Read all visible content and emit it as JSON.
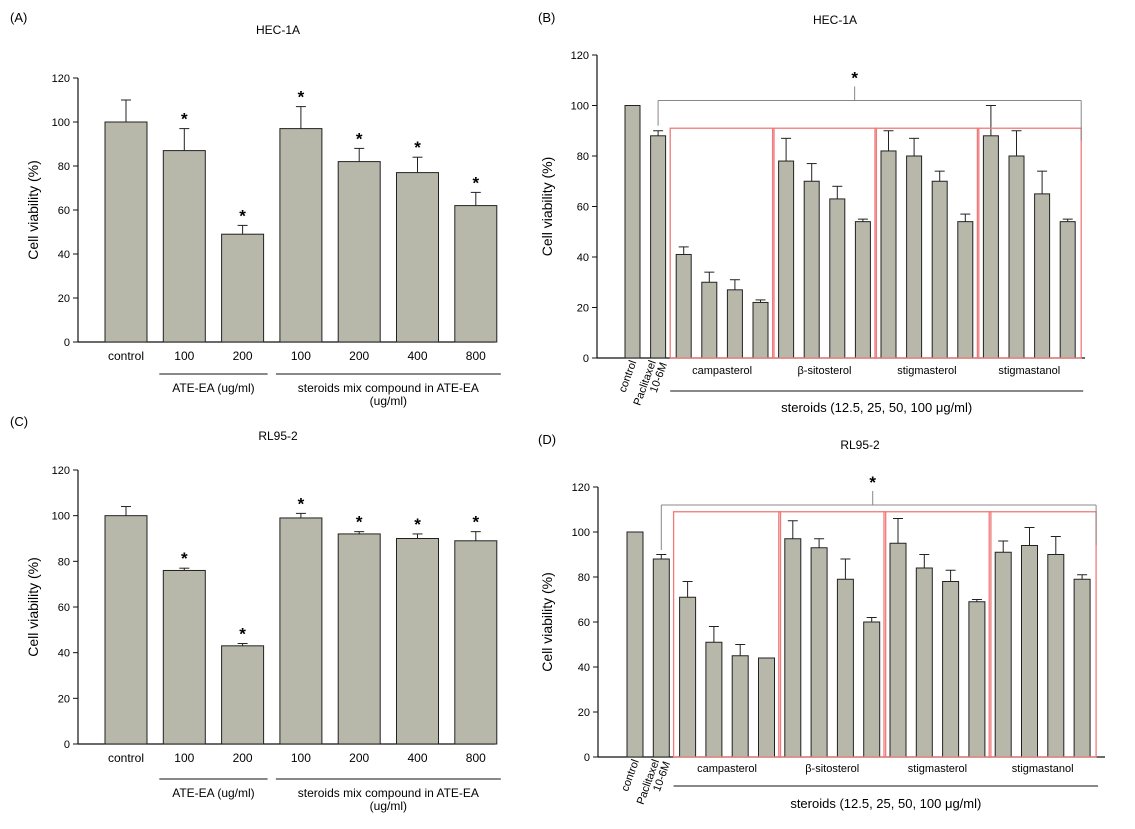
{
  "style": {
    "bar_fill": "#b8b8aa",
    "bar_stroke": "#222222",
    "group_box": "#f07a7a",
    "axis": "#111111",
    "bracket": "#888888"
  },
  "chart_data": [
    {
      "panel_label": "(A)",
      "type": "bar",
      "title": "HEC-1A",
      "xlabel": "",
      "ylabel": "Cell viability (%)",
      "ylim": [
        0,
        120
      ],
      "yticks": [
        0,
        20,
        40,
        60,
        80,
        100,
        120
      ],
      "categories": [
        "control",
        "100",
        "200",
        "100",
        "200",
        "400",
        "800"
      ],
      "values": [
        100,
        87,
        49,
        97,
        82,
        77,
        62
      ],
      "errors": [
        10,
        10,
        4,
        10,
        6,
        7,
        6
      ],
      "significant": [
        false,
        true,
        true,
        true,
        true,
        true,
        true
      ],
      "star_label": "*",
      "groups": [
        {
          "label": "ATE-EA  (ug/ml)",
          "from": 1,
          "to": 2
        },
        {
          "label": "steroids mix compound in ATE-EA (ug/ml)",
          "from": 3,
          "to": 6
        }
      ]
    },
    {
      "panel_label": "(B)",
      "type": "bar",
      "title": "HEC-1A",
      "xlabel": "steroids (12.5, 25, 50, 100 μg/ml)",
      "ylabel": "Cell viability (%)",
      "ylim": [
        0,
        120
      ],
      "yticks": [
        0,
        20,
        40,
        60,
        80,
        100,
        120
      ],
      "categories": [
        "control",
        "Paclitaxel 10-6M",
        "",
        "",
        "",
        "",
        "",
        "",
        "",
        "",
        "",
        "",
        "",
        "",
        "",
        "",
        "",
        ""
      ],
      "values": [
        100,
        88,
        41,
        30,
        27,
        22,
        78,
        70,
        63,
        54,
        82,
        80,
        70,
        54,
        88,
        80,
        65,
        54
      ],
      "errors": [
        0,
        2,
        3,
        4,
        4,
        1,
        9,
        7,
        5,
        1,
        8,
        7,
        4,
        3,
        12,
        10,
        9,
        1
      ],
      "rotated_labels": [
        "control",
        "Paclitaxel",
        "10-6M"
      ],
      "steroid_groups": [
        "campasterol",
        "β-sitosterol",
        "stigmasterol",
        "stigmastanol"
      ],
      "star_label": "*"
    },
    {
      "panel_label": "(C)",
      "type": "bar",
      "title": "RL95-2",
      "xlabel": "",
      "ylabel": "Cell viability (%)",
      "ylim": [
        0,
        120
      ],
      "yticks": [
        0,
        20,
        40,
        60,
        80,
        100,
        120
      ],
      "categories": [
        "control",
        "100",
        "200",
        "100",
        "200",
        "400",
        "800"
      ],
      "values": [
        100,
        76,
        43,
        99,
        92,
        90,
        89
      ],
      "errors": [
        4,
        1,
        1,
        2,
        1,
        2,
        4
      ],
      "significant": [
        false,
        true,
        true,
        true,
        true,
        true,
        true
      ],
      "star_label": "*",
      "groups": [
        {
          "label": "ATE-EA  (ug/ml)",
          "from": 1,
          "to": 2
        },
        {
          "label": "steroids mix compound in ATE-EA (ug/ml)",
          "from": 3,
          "to": 6
        }
      ]
    },
    {
      "panel_label": "(D)",
      "type": "bar",
      "title": "RL95-2",
      "xlabel": "steroids (12.5, 25, 50, 100 μg/ml)",
      "ylabel": "Cell viability (%)",
      "ylim": [
        0,
        120
      ],
      "yticks": [
        0,
        20,
        40,
        60,
        80,
        100,
        120
      ],
      "categories": [
        "control",
        "Paclitaxel 10-6M",
        "",
        "",
        "",
        "",
        "",
        "",
        "",
        "",
        "",
        "",
        "",
        "",
        "",
        "",
        "",
        ""
      ],
      "values": [
        100,
        88,
        71,
        51,
        45,
        44,
        97,
        93,
        79,
        60,
        95,
        84,
        78,
        69,
        91,
        94,
        90,
        79
      ],
      "errors": [
        0,
        2,
        7,
        7,
        5,
        0,
        8,
        4,
        9,
        2,
        11,
        6,
        5,
        1,
        5,
        8,
        8,
        2
      ],
      "rotated_labels": [
        "control",
        "Paclitaxel",
        "10-6M"
      ],
      "steroid_groups": [
        "campasterol",
        "β-sitosterol",
        "stigmasterol",
        "stigmastanol"
      ],
      "star_label": "*"
    }
  ]
}
